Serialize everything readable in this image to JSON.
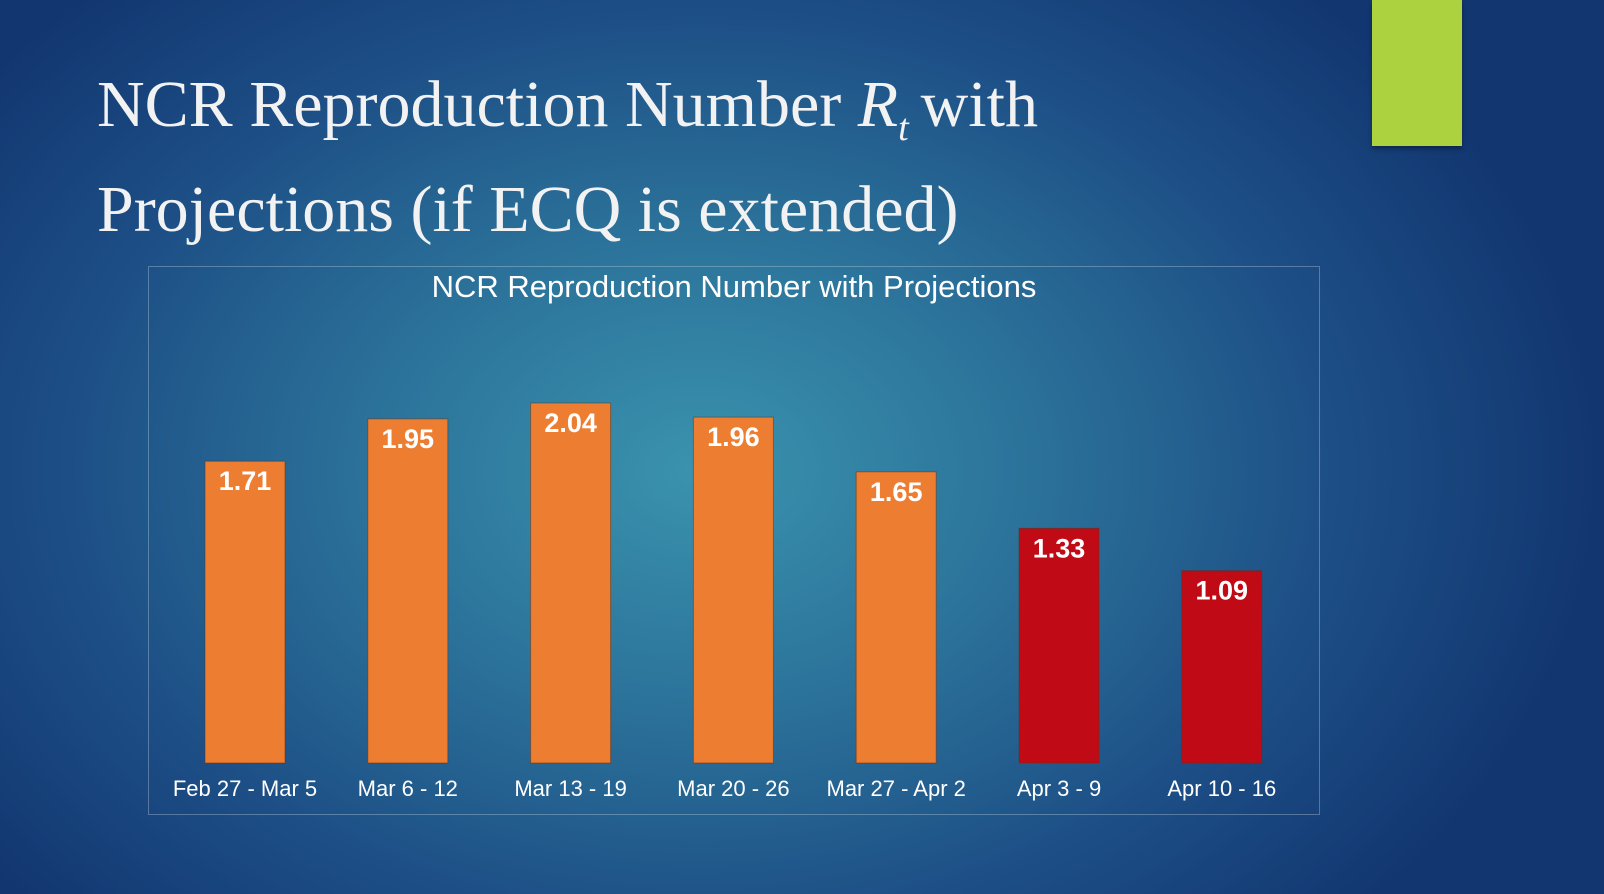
{
  "slide": {
    "title_line1_prefix": "NCR Reproduction Number ",
    "title_symbol": "R",
    "title_subscript": "t",
    "title_line1_suffix": "with",
    "title_line2": "Projections (if ECQ is extended)"
  },
  "colors": {
    "actual": "#ed7d31",
    "projection": "#c00a15",
    "accent": "#acd23f"
  },
  "chart_data": {
    "type": "bar",
    "title": "NCR Reproduction Number with Projections",
    "categories": [
      "Feb 27 - Mar 5",
      "Mar 6 - 12",
      "Mar 13 - 19",
      "Mar 20 - 26",
      "Mar 27 - Apr 2",
      "Apr 3 - 9",
      "Apr 10 - 16"
    ],
    "values": [
      1.71,
      1.95,
      2.04,
      1.96,
      1.65,
      1.33,
      1.09
    ],
    "labels": [
      "1.71",
      "1.95",
      "2.04",
      "1.96",
      "1.65",
      "1.33",
      "1.09"
    ],
    "projection": [
      false,
      false,
      false,
      false,
      false,
      true,
      true
    ],
    "xlabel": "",
    "ylabel": "",
    "ylim": [
      0,
      2.04
    ],
    "grid": false,
    "legend": "none"
  }
}
